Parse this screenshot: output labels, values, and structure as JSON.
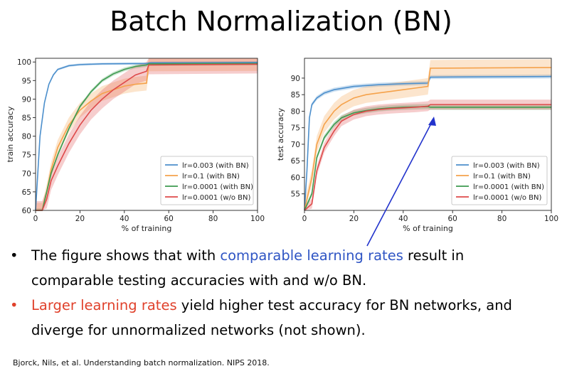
{
  "slide": {
    "title": "Batch Normalization (BN)",
    "bullets": [
      {
        "marker": "•",
        "line1": [
          {
            "text": "The figure shows that with ",
            "color": "black"
          },
          {
            "text": "comparable learning rates",
            "color": "blue"
          },
          {
            "text": " result in",
            "color": "black"
          }
        ],
        "line2": [
          {
            "text": "comparable testing accuracies",
            "color": "black"
          },
          {
            "text": " with and w/o BN.",
            "color": "black"
          }
        ]
      },
      {
        "marker": "•",
        "line1": [
          {
            "text": "Larger learning rates",
            "color": "red"
          },
          {
            "text": " yield ",
            "color": "black"
          },
          {
            "text": "higher test accuracy",
            "color": "black"
          },
          {
            "text": " for BN networks, and",
            "color": "black"
          }
        ],
        "line2": [
          {
            "text": "diverge",
            "color": "black"
          },
          {
            "text": " for unnormalized networks (not shown).",
            "color": "black"
          }
        ]
      }
    ],
    "citation": "Bjorck, Nils, et al. Understanding batch normalization. NIPS 2018.",
    "colors": {
      "blue_text": "#2f55c4",
      "red_text": "#e0412b",
      "arrow": "#2233cc"
    }
  },
  "chart_data": [
    {
      "type": "line",
      "xlabel": "% of training",
      "ylabel": "train accuracy",
      "xlim": [
        0,
        100
      ],
      "ylim": [
        60,
        101
      ],
      "xticks": [
        0,
        20,
        40,
        60,
        80,
        100
      ],
      "yticks": [
        60,
        65,
        70,
        75,
        80,
        85,
        90,
        95,
        100
      ],
      "grid": false,
      "legend_position": "lower-right",
      "series": [
        {
          "name": "lr=0.003 (with BN)",
          "color": "#4c8fcc",
          "x": [
            0,
            2,
            4,
            6,
            8,
            10,
            15,
            20,
            30,
            50,
            52,
            100
          ],
          "y": [
            60,
            80,
            89,
            94,
            96.5,
            98,
            99,
            99.3,
            99.5,
            99.6,
            99.8,
            99.9
          ],
          "band": 0.3
        },
        {
          "name": "lr=0.1 (with BN)",
          "color": "#f5a24b",
          "x": [
            0,
            3,
            5,
            7,
            10,
            15,
            20,
            25,
            30,
            35,
            40,
            45,
            50,
            51,
            100
          ],
          "y": [
            60,
            60,
            65,
            71,
            77,
            83,
            87,
            89.5,
            91.5,
            92.5,
            93.5,
            94,
            94.3,
            99.5,
            99.6
          ],
          "band": 2.0
        },
        {
          "name": "lr=0.0001 (with BN)",
          "color": "#3d9a4f",
          "x": [
            0,
            3,
            5,
            7,
            10,
            15,
            20,
            25,
            30,
            35,
            40,
            45,
            50,
            51,
            100
          ],
          "y": [
            60,
            60,
            65,
            70,
            75,
            82,
            88,
            92,
            95,
            96.8,
            98,
            98.8,
            99.2,
            99.5,
            99.6
          ],
          "band": 0.5
        },
        {
          "name": "lr=0.0001 (w/o BN)",
          "color": "#de4a4a",
          "x": [
            0,
            3,
            5,
            7,
            10,
            15,
            20,
            25,
            30,
            35,
            40,
            45,
            50,
            51,
            100
          ],
          "y": [
            60,
            60,
            63,
            68,
            72,
            78,
            83,
            87,
            90,
            92.5,
            94.5,
            96.5,
            97.5,
            99.2,
            99.4
          ],
          "band": 2.5
        }
      ]
    },
    {
      "type": "line",
      "xlabel": "% of training",
      "ylabel": "test accuracy",
      "xlim": [
        0,
        100
      ],
      "ylim": [
        50,
        96
      ],
      "xticks": [
        0,
        20,
        40,
        60,
        80,
        100
      ],
      "yticks": [
        55,
        60,
        65,
        70,
        75,
        80,
        85,
        90
      ],
      "grid": false,
      "legend_position": "lower-right",
      "series": [
        {
          "name": "lr=0.003 (with BN)",
          "color": "#4c8fcc",
          "x": [
            0,
            1,
            2,
            3,
            5,
            8,
            12,
            20,
            30,
            40,
            50,
            51,
            100
          ],
          "y": [
            50,
            62,
            78,
            82,
            84,
            85.5,
            86.5,
            87.5,
            88,
            88.3,
            88.5,
            90.3,
            90.5
          ],
          "band": 0.6
        },
        {
          "name": "lr=0.1 (with BN)",
          "color": "#f5a24b",
          "x": [
            0,
            3,
            5,
            8,
            12,
            15,
            20,
            25,
            30,
            35,
            40,
            45,
            50,
            51,
            100
          ],
          "y": [
            50,
            60,
            70,
            76,
            80,
            82,
            84,
            85,
            85.5,
            86,
            86.5,
            87,
            87.5,
            93,
            93.2
          ],
          "band": 2.5
        },
        {
          "name": "lr=0.0001 (with BN)",
          "color": "#3d9a4f",
          "x": [
            0,
            3,
            5,
            8,
            12,
            15,
            20,
            25,
            30,
            35,
            40,
            45,
            50,
            51,
            100
          ],
          "y": [
            50,
            55,
            66,
            72,
            76,
            78,
            79.5,
            80.2,
            80.7,
            81,
            81.2,
            81.3,
            81.4,
            81.2,
            81.2
          ],
          "band": 0.8
        },
        {
          "name": "lr=0.0001 (w/o BN)",
          "color": "#de4a4a",
          "x": [
            0,
            3,
            5,
            8,
            12,
            15,
            20,
            25,
            30,
            35,
            40,
            45,
            50,
            51,
            100
          ],
          "y": [
            50,
            52,
            62,
            69,
            74,
            77,
            79,
            80,
            80.5,
            80.8,
            81,
            81.2,
            81.5,
            82,
            82
          ],
          "band": 1.5
        }
      ]
    }
  ]
}
